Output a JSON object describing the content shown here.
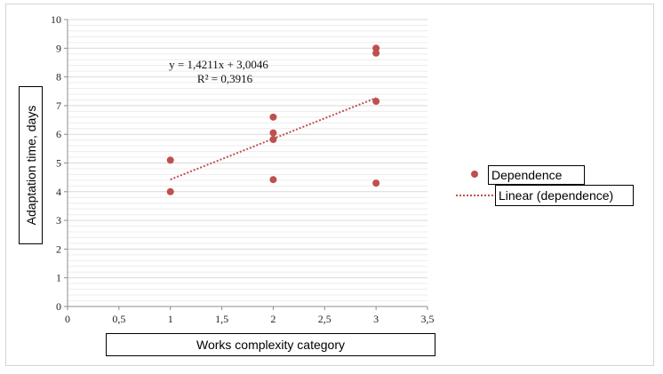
{
  "chart_data": {
    "type": "scatter",
    "xlabel": "Works complexity category",
    "ylabel": "Adaptation time, days",
    "xlim": [
      0,
      3.5
    ],
    "ylim": [
      0,
      10
    ],
    "x_ticks": [
      "0",
      "0,5",
      "1",
      "1,5",
      "2",
      "2,5",
      "3",
      "3,5"
    ],
    "y_ticks": [
      "0",
      "1",
      "2",
      "3",
      "4",
      "5",
      "6",
      "7",
      "8",
      "9",
      "10"
    ],
    "grid": "horizontal minor gridlines",
    "series": [
      {
        "name": "Dependence",
        "color": "#c0504d",
        "points": [
          {
            "x": 1,
            "y": 4.0
          },
          {
            "x": 1,
            "y": 5.1
          },
          {
            "x": 2,
            "y": 4.42
          },
          {
            "x": 2,
            "y": 5.82
          },
          {
            "x": 2,
            "y": 6.05
          },
          {
            "x": 2,
            "y": 6.6
          },
          {
            "x": 3,
            "y": 4.3
          },
          {
            "x": 3,
            "y": 7.15
          },
          {
            "x": 3,
            "y": 8.83
          },
          {
            "x": 3,
            "y": 9.0
          }
        ]
      }
    ],
    "trendline": {
      "name": "Linear (dependence)",
      "color": "#c0504d",
      "style": "dotted",
      "slope": 1.4211,
      "intercept": 3.0046,
      "x_range": [
        1,
        3
      ],
      "equation": "y = 1,4211x + 3,0046",
      "r_squared": "R² = 0,3916"
    },
    "legend": "right"
  }
}
